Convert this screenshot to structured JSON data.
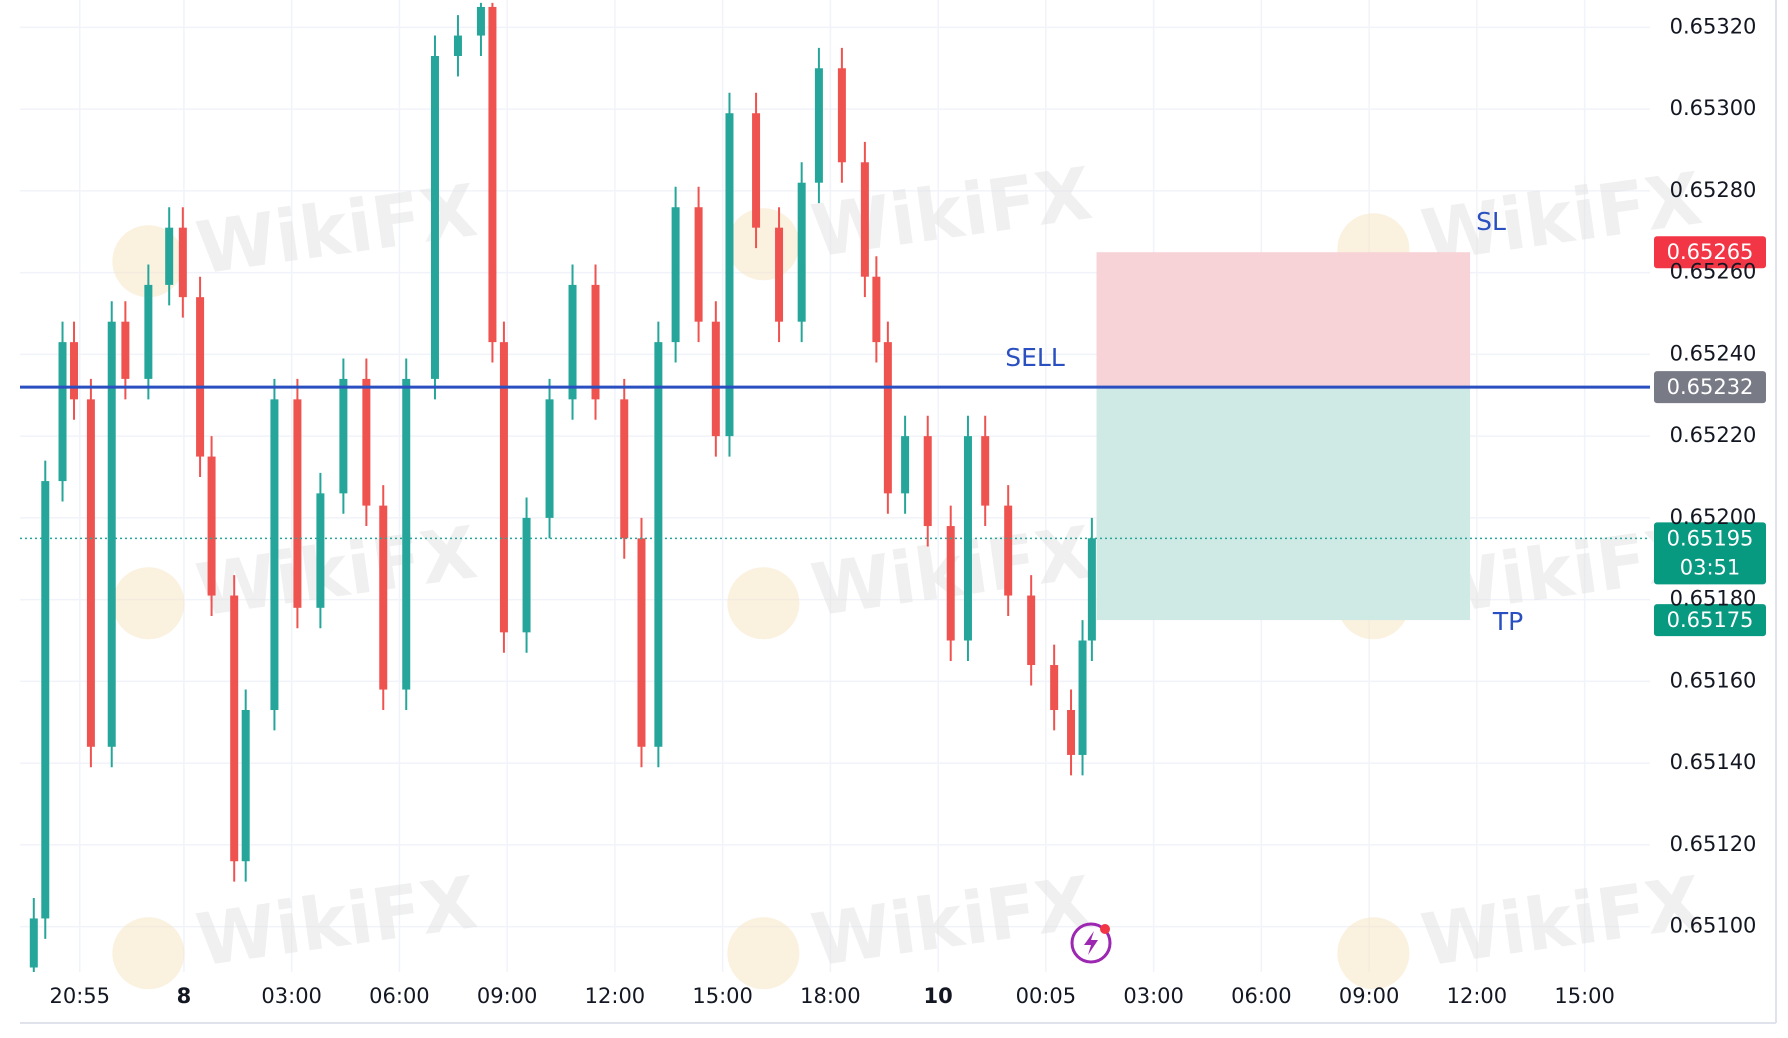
{
  "chart_data": {
    "type": "candlestick",
    "x": [
      -4.18,
      -3.86,
      -3.38,
      -3.06,
      -2.59,
      -2.01,
      -1.63,
      -0.99,
      -0.41,
      -0.03,
      0.45,
      0.77,
      1.4,
      1.72,
      2.52,
      3.16,
      3.8,
      4.44,
      5.08,
      5.55,
      6.19,
      6.99,
      7.63,
      8.27,
      8.59,
      8.91,
      9.54,
      10.18,
      10.82,
      11.46,
      12.26,
      12.74,
      13.21,
      13.69,
      14.33,
      14.81,
      15.19,
      15.93,
      16.57,
      17.2,
      17.68,
      18.32,
      18.96,
      19.28,
      19.6,
      20.08,
      20.71,
      21.35,
      21.83,
      22.31,
      22.95,
      23.59,
      24.23,
      24.7,
      25.02,
      25.28
    ],
    "open": [
      0.6509,
      0.65102,
      0.65209,
      0.65243,
      0.65229,
      0.65144,
      0.65248,
      0.65234,
      0.65257,
      0.65271,
      0.65254,
      0.65215,
      0.65181,
      0.65116,
      0.65153,
      0.65229,
      0.65178,
      0.65206,
      0.65234,
      0.65203,
      0.65158,
      0.65234,
      0.65313,
      0.65318,
      0.65325,
      0.65243,
      0.65172,
      0.652,
      0.65229,
      0.65257,
      0.65229,
      0.65195,
      0.65144,
      0.65243,
      0.65276,
      0.65248,
      0.6522,
      0.65299,
      0.65271,
      0.65248,
      0.65282,
      0.6531,
      0.65287,
      0.65259,
      0.65243,
      0.65206,
      0.6522,
      0.65198,
      0.6517,
      0.6522,
      0.65203,
      0.65181,
      0.65164,
      0.65153,
      0.65142,
      0.6517
    ],
    "high": [
      0.65107,
      0.65214,
      0.65248,
      0.65248,
      0.65234,
      0.65253,
      0.65253,
      0.65262,
      0.65276,
      0.65276,
      0.65259,
      0.6522,
      0.65186,
      0.65158,
      0.65234,
      0.65234,
      0.65211,
      0.65239,
      0.65239,
      0.65208,
      0.65239,
      0.65318,
      0.65323,
      0.65326,
      0.65326,
      0.65248,
      0.65205,
      0.65234,
      0.65262,
      0.65262,
      0.65234,
      0.652,
      0.65248,
      0.65281,
      0.65281,
      0.65253,
      0.65304,
      0.65304,
      0.65276,
      0.65287,
      0.65315,
      0.65315,
      0.65292,
      0.65264,
      0.65248,
      0.65225,
      0.65225,
      0.65203,
      0.65225,
      0.65225,
      0.65208,
      0.65186,
      0.65169,
      0.65158,
      0.65175,
      0.652
    ],
    "low": [
      0.65085,
      0.65097,
      0.65204,
      0.65224,
      0.65139,
      0.65139,
      0.65229,
      0.65229,
      0.65252,
      0.65249,
      0.6521,
      0.65176,
      0.65111,
      0.65111,
      0.65148,
      0.65173,
      0.65173,
      0.65201,
      0.65198,
      0.65153,
      0.65153,
      0.65229,
      0.65308,
      0.65313,
      0.65238,
      0.65167,
      0.65167,
      0.65195,
      0.65224,
      0.65224,
      0.6519,
      0.65139,
      0.65139,
      0.65238,
      0.65243,
      0.65215,
      0.65215,
      0.65266,
      0.65243,
      0.65243,
      0.65277,
      0.65282,
      0.65254,
      0.65238,
      0.65201,
      0.65201,
      0.65193,
      0.65165,
      0.65165,
      0.65198,
      0.65176,
      0.65159,
      0.65148,
      0.65137,
      0.65137,
      0.65165
    ],
    "close": [
      0.65102,
      0.65209,
      0.65243,
      0.65229,
      0.65144,
      0.65248,
      0.65234,
      0.65257,
      0.65271,
      0.65254,
      0.65215,
      0.65181,
      0.65116,
      0.65153,
      0.65229,
      0.65178,
      0.65206,
      0.65234,
      0.65203,
      0.65158,
      0.65234,
      0.65313,
      0.65318,
      0.65325,
      0.65243,
      0.65172,
      0.652,
      0.65229,
      0.65257,
      0.65229,
      0.65195,
      0.65144,
      0.65243,
      0.65276,
      0.65248,
      0.6522,
      0.65299,
      0.65271,
      0.65248,
      0.65282,
      0.6531,
      0.65287,
      0.65259,
      0.65243,
      0.65206,
      0.6522,
      0.65198,
      0.6517,
      0.6522,
      0.65203,
      0.65181,
      0.65164,
      0.65153,
      0.65142,
      0.6517,
      0.65195
    ],
    "up_color": "#26a69a",
    "down_color": "#ef5350",
    "ylim": [
      0.650889,
      0.653267
    ],
    "yticks": [
      {
        "value": 0.651,
        "label": "0.65100"
      },
      {
        "value": 0.6512,
        "label": "0.65120"
      },
      {
        "value": 0.6514,
        "label": "0.65140"
      },
      {
        "value": 0.6516,
        "label": "0.65160"
      },
      {
        "value": 0.6518,
        "label": "0.65180"
      },
      {
        "value": 0.652,
        "label": "0.65200"
      },
      {
        "value": 0.6522,
        "label": "0.65220"
      },
      {
        "value": 0.6524,
        "label": "0.65240"
      },
      {
        "value": 0.6526,
        "label": "0.65260"
      },
      {
        "value": 0.6528,
        "label": "0.65280"
      },
      {
        "value": 0.653,
        "label": "0.65300"
      },
      {
        "value": 0.6532,
        "label": "0.65320"
      }
    ],
    "xlim": [
      -4.564,
      40.82
    ],
    "xticks": [
      {
        "value": -2.9,
        "label": "20:55"
      },
      {
        "value": 0,
        "label": "8",
        "bold": true
      },
      {
        "value": 3,
        "label": "03:00"
      },
      {
        "value": 6,
        "label": "06:00"
      },
      {
        "value": 9,
        "label": "09:00"
      },
      {
        "value": 12,
        "label": "12:00"
      },
      {
        "value": 15,
        "label": "15:00"
      },
      {
        "value": 18,
        "label": "18:00"
      },
      {
        "value": 21,
        "label": "10",
        "bold": true
      },
      {
        "value": 24,
        "label": "00:05"
      },
      {
        "value": 27,
        "label": "03:00"
      },
      {
        "value": 30,
        "label": "06:00"
      },
      {
        "value": 33,
        "label": "09:00"
      },
      {
        "value": 36,
        "label": "12:00"
      },
      {
        "value": 39,
        "label": "15:00"
      }
    ],
    "grid": true,
    "position": {
      "entry": 0.65232,
      "stop_loss": 0.65265,
      "take_profit": 0.65175,
      "x_start": 25.41,
      "x_end": 35.81,
      "entry_label": "SELL",
      "stop_loss_label": "SL",
      "take_profit_label": "TP",
      "entry_color": "#2a4fc0",
      "stop_color": "#f7d3d7",
      "profit_color": "#cfeae4"
    },
    "last_price": 0.65195,
    "countdown": "03:51",
    "watermark": "WikiFX"
  }
}
